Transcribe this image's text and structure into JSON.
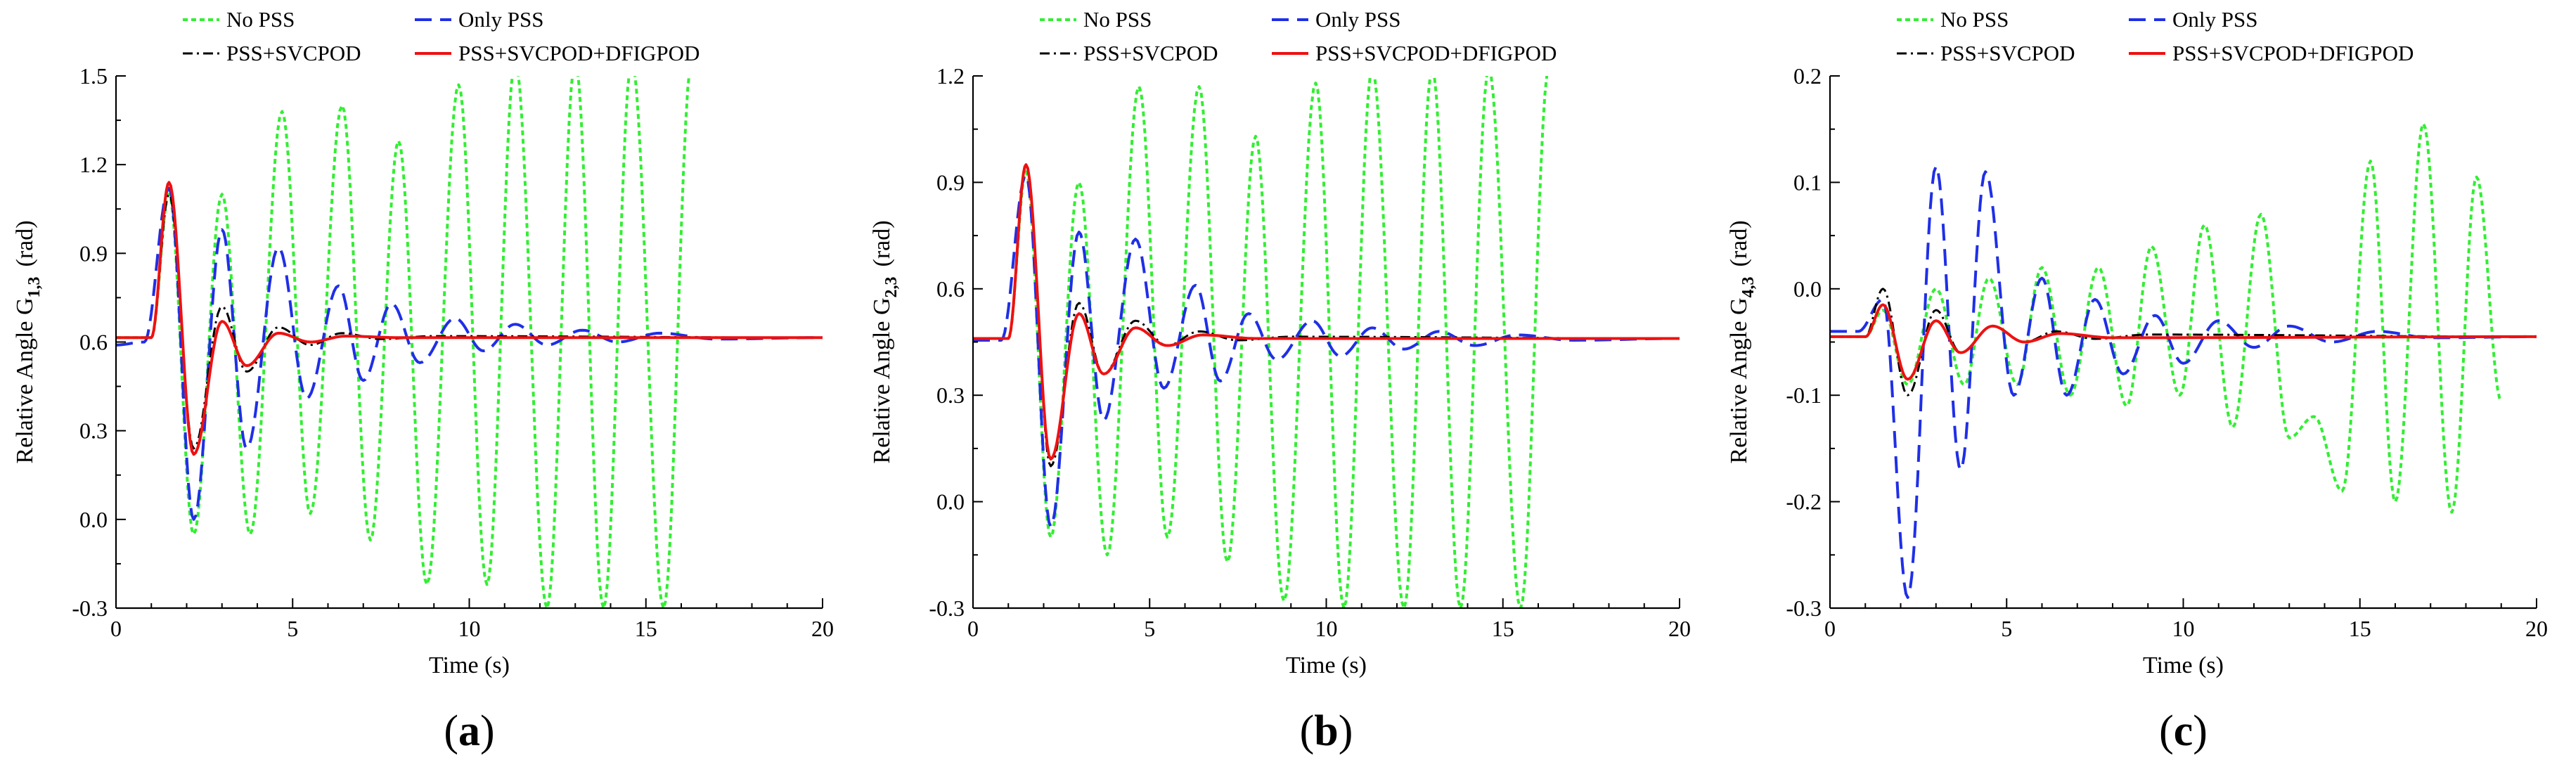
{
  "figure": {
    "colors": {
      "no_pss": "#33ee33",
      "only_pss": "#1f2fe6",
      "pss_svcpod": "#000000",
      "pss_svcpod_dfigpod": "#ee1111"
    },
    "legend": [
      "No PSS",
      "Only PSS",
      "PSS+SVCPOD",
      "PSS+SVCPOD+DFIGPOD"
    ]
  },
  "chart_data": [
    {
      "type": "line",
      "panel_label": "a",
      "xlabel": "Time (s)",
      "ylabel_prefix": "Relative Angle G",
      "ylabel_sub": "1,3",
      "ylabel_unit": "(rad)",
      "xlim": [
        0,
        20
      ],
      "ylim": [
        -0.3,
        1.5
      ],
      "xticks": [
        0,
        5,
        10,
        15,
        20
      ],
      "yticks": [
        -0.3,
        0.0,
        0.3,
        0.6,
        0.9,
        1.2,
        1.5
      ],
      "ytick_labels": [
        "-0.3",
        "0.0",
        "0.3",
        "0.6",
        "0.9",
        "1.2",
        "1.5"
      ],
      "series": [
        {
          "name": "No PSS",
          "style": "dotted",
          "x": [
            0,
            1.0,
            1.5,
            2.2,
            3.0,
            3.8,
            4.7,
            5.5,
            6.4,
            7.2,
            8.0,
            8.8,
            9.7,
            10.5,
            11.3,
            12.2,
            13.0,
            13.8,
            14.6,
            15.5,
            16.3
          ],
          "y": [
            0.615,
            0.615,
            1.1,
            -0.05,
            1.1,
            -0.05,
            1.38,
            0.02,
            1.4,
            -0.07,
            1.28,
            -0.22,
            1.47,
            -0.22,
            1.55,
            -0.3,
            1.55,
            -0.3,
            1.55,
            -0.3,
            1.55
          ]
        },
        {
          "name": "Only PSS",
          "style": "dashed",
          "x": [
            0,
            0.8,
            1.5,
            2.2,
            3.0,
            3.7,
            4.6,
            5.4,
            6.3,
            7.0,
            7.8,
            8.6,
            9.6,
            10.4,
            11.3,
            12.2,
            13.2,
            14.2,
            15.4,
            17.0,
            20
          ],
          "y": [
            0.59,
            0.6,
            1.12,
            0.0,
            0.98,
            0.24,
            0.92,
            0.41,
            0.79,
            0.47,
            0.73,
            0.53,
            0.68,
            0.57,
            0.66,
            0.59,
            0.64,
            0.6,
            0.63,
            0.61,
            0.615
          ]
        },
        {
          "name": "PSS+SVCPOD",
          "style": "dashdot",
          "x": [
            0,
            1.0,
            1.5,
            2.2,
            3.0,
            3.7,
            4.6,
            5.5,
            6.4,
            7.5,
            9.0,
            20
          ],
          "y": [
            0.615,
            0.615,
            1.1,
            0.24,
            0.72,
            0.5,
            0.65,
            0.59,
            0.63,
            0.61,
            0.62,
            0.615
          ]
        },
        {
          "name": "PSS+SVCPOD+DFIGPOD",
          "style": "solid",
          "x": [
            0,
            1.0,
            1.5,
            2.2,
            3.0,
            3.7,
            4.6,
            5.5,
            6.5,
            8.0,
            20
          ],
          "y": [
            0.615,
            0.615,
            1.14,
            0.22,
            0.67,
            0.52,
            0.63,
            0.6,
            0.62,
            0.615,
            0.615
          ]
        }
      ]
    },
    {
      "type": "line",
      "panel_label": "b",
      "xlabel": "Time (s)",
      "ylabel_prefix": "Relative Angle G",
      "ylabel_sub": "2,3",
      "ylabel_unit": "(rad)",
      "xlim": [
        0,
        20
      ],
      "ylim": [
        -0.3,
        1.2
      ],
      "xticks": [
        0,
        5,
        10,
        15,
        20
      ],
      "yticks": [
        -0.3,
        0.0,
        0.3,
        0.6,
        0.9,
        1.2
      ],
      "ytick_labels": [
        "-0.3",
        "0.0",
        "0.3",
        "0.6",
        "0.9",
        "1.2"
      ],
      "series": [
        {
          "name": "No PSS",
          "style": "dotted",
          "x": [
            0,
            1.0,
            1.5,
            2.2,
            3.0,
            3.8,
            4.7,
            5.5,
            6.4,
            7.2,
            8.0,
            8.8,
            9.7,
            10.5,
            11.3,
            12.2,
            13.0,
            13.8,
            14.6,
            15.5,
            16.3
          ],
          "y": [
            0.46,
            0.46,
            0.93,
            -0.1,
            0.9,
            -0.15,
            1.17,
            -0.1,
            1.17,
            -0.17,
            1.03,
            -0.28,
            1.18,
            -0.3,
            1.22,
            -0.3,
            1.22,
            -0.3,
            1.22,
            -0.3,
            1.22
          ]
        },
        {
          "name": "Only PSS",
          "style": "dashed",
          "x": [
            0,
            0.8,
            1.5,
            2.2,
            3.0,
            3.7,
            4.6,
            5.4,
            6.3,
            7.0,
            7.8,
            8.6,
            9.6,
            10.4,
            11.3,
            12.2,
            13.2,
            14.2,
            15.4,
            17.0,
            20
          ],
          "y": [
            0.455,
            0.455,
            0.92,
            -0.07,
            0.76,
            0.23,
            0.74,
            0.32,
            0.61,
            0.34,
            0.53,
            0.4,
            0.51,
            0.41,
            0.49,
            0.43,
            0.48,
            0.44,
            0.47,
            0.455,
            0.46
          ]
        },
        {
          "name": "PSS+SVCPOD",
          "style": "dashdot",
          "x": [
            0,
            1.0,
            1.5,
            2.2,
            3.0,
            3.7,
            4.6,
            5.5,
            6.4,
            7.5,
            9.0,
            20
          ],
          "y": [
            0.46,
            0.46,
            0.95,
            0.1,
            0.56,
            0.36,
            0.51,
            0.44,
            0.48,
            0.455,
            0.465,
            0.46
          ]
        },
        {
          "name": "PSS+SVCPOD+DFIGPOD",
          "style": "solid",
          "x": [
            0,
            1.0,
            1.5,
            2.2,
            3.0,
            3.7,
            4.6,
            5.5,
            6.5,
            8.0,
            20
          ],
          "y": [
            0.46,
            0.46,
            0.95,
            0.12,
            0.53,
            0.36,
            0.49,
            0.44,
            0.47,
            0.46,
            0.46
          ]
        }
      ]
    },
    {
      "type": "line",
      "panel_label": "c",
      "xlabel": "Time (s)",
      "ylabel_prefix": "Relative Angle G",
      "ylabel_sub": "4,3",
      "ylabel_unit": "(rad)",
      "xlim": [
        0,
        20
      ],
      "ylim": [
        -0.3,
        0.2
      ],
      "xticks": [
        0,
        5,
        10,
        15,
        20
      ],
      "yticks": [
        -0.3,
        -0.2,
        -0.1,
        0.0,
        0.1,
        0.2
      ],
      "ytick_labels": [
        "-0.3",
        "-0.2",
        "-0.1",
        "0.0",
        "0.1",
        "0.2"
      ],
      "series": [
        {
          "name": "No PSS",
          "style": "dotted",
          "x": [
            0,
            1.0,
            1.5,
            2.2,
            3.0,
            3.8,
            4.5,
            5.3,
            6.0,
            6.8,
            7.6,
            8.4,
            9.1,
            9.9,
            10.6,
            11.4,
            12.2,
            13.0,
            13.7,
            14.5,
            15.3,
            16.0,
            16.8,
            17.6,
            18.3,
            19.0
          ],
          "y": [
            -0.045,
            -0.045,
            -0.02,
            -0.09,
            0.0,
            -0.09,
            0.01,
            -0.09,
            0.02,
            -0.1,
            0.02,
            -0.11,
            0.04,
            -0.1,
            0.06,
            -0.13,
            0.07,
            -0.14,
            -0.12,
            -0.19,
            0.12,
            -0.2,
            0.155,
            -0.21,
            0.105,
            -0.105
          ]
        },
        {
          "name": "Only PSS",
          "style": "dashed",
          "x": [
            0,
            0.8,
            1.5,
            2.2,
            3.0,
            3.7,
            4.4,
            5.2,
            6.0,
            6.7,
            7.5,
            8.3,
            9.2,
            10.0,
            11.0,
            12.0,
            13.0,
            14.2,
            15.5,
            17.0,
            20
          ],
          "y": [
            -0.04,
            -0.04,
            -0.01,
            -0.29,
            0.115,
            -0.17,
            0.11,
            -0.1,
            0.01,
            -0.1,
            -0.01,
            -0.08,
            -0.025,
            -0.07,
            -0.03,
            -0.055,
            -0.035,
            -0.05,
            -0.04,
            -0.046,
            -0.045
          ]
        },
        {
          "name": "PSS+SVCPOD",
          "style": "dashdot",
          "x": [
            0,
            1.0,
            1.5,
            2.2,
            3.0,
            3.7,
            4.6,
            5.5,
            6.4,
            7.5,
            9.0,
            20
          ],
          "y": [
            -0.045,
            -0.045,
            0.0,
            -0.1,
            -0.02,
            -0.06,
            -0.035,
            -0.05,
            -0.04,
            -0.047,
            -0.043,
            -0.045
          ]
        },
        {
          "name": "PSS+SVCPOD+DFIGPOD",
          "style": "solid",
          "x": [
            0,
            1.0,
            1.5,
            2.2,
            3.0,
            3.7,
            4.6,
            5.5,
            6.5,
            8.0,
            20
          ],
          "y": [
            -0.045,
            -0.045,
            -0.015,
            -0.085,
            -0.03,
            -0.06,
            -0.035,
            -0.05,
            -0.042,
            -0.046,
            -0.045
          ]
        }
      ]
    }
  ]
}
